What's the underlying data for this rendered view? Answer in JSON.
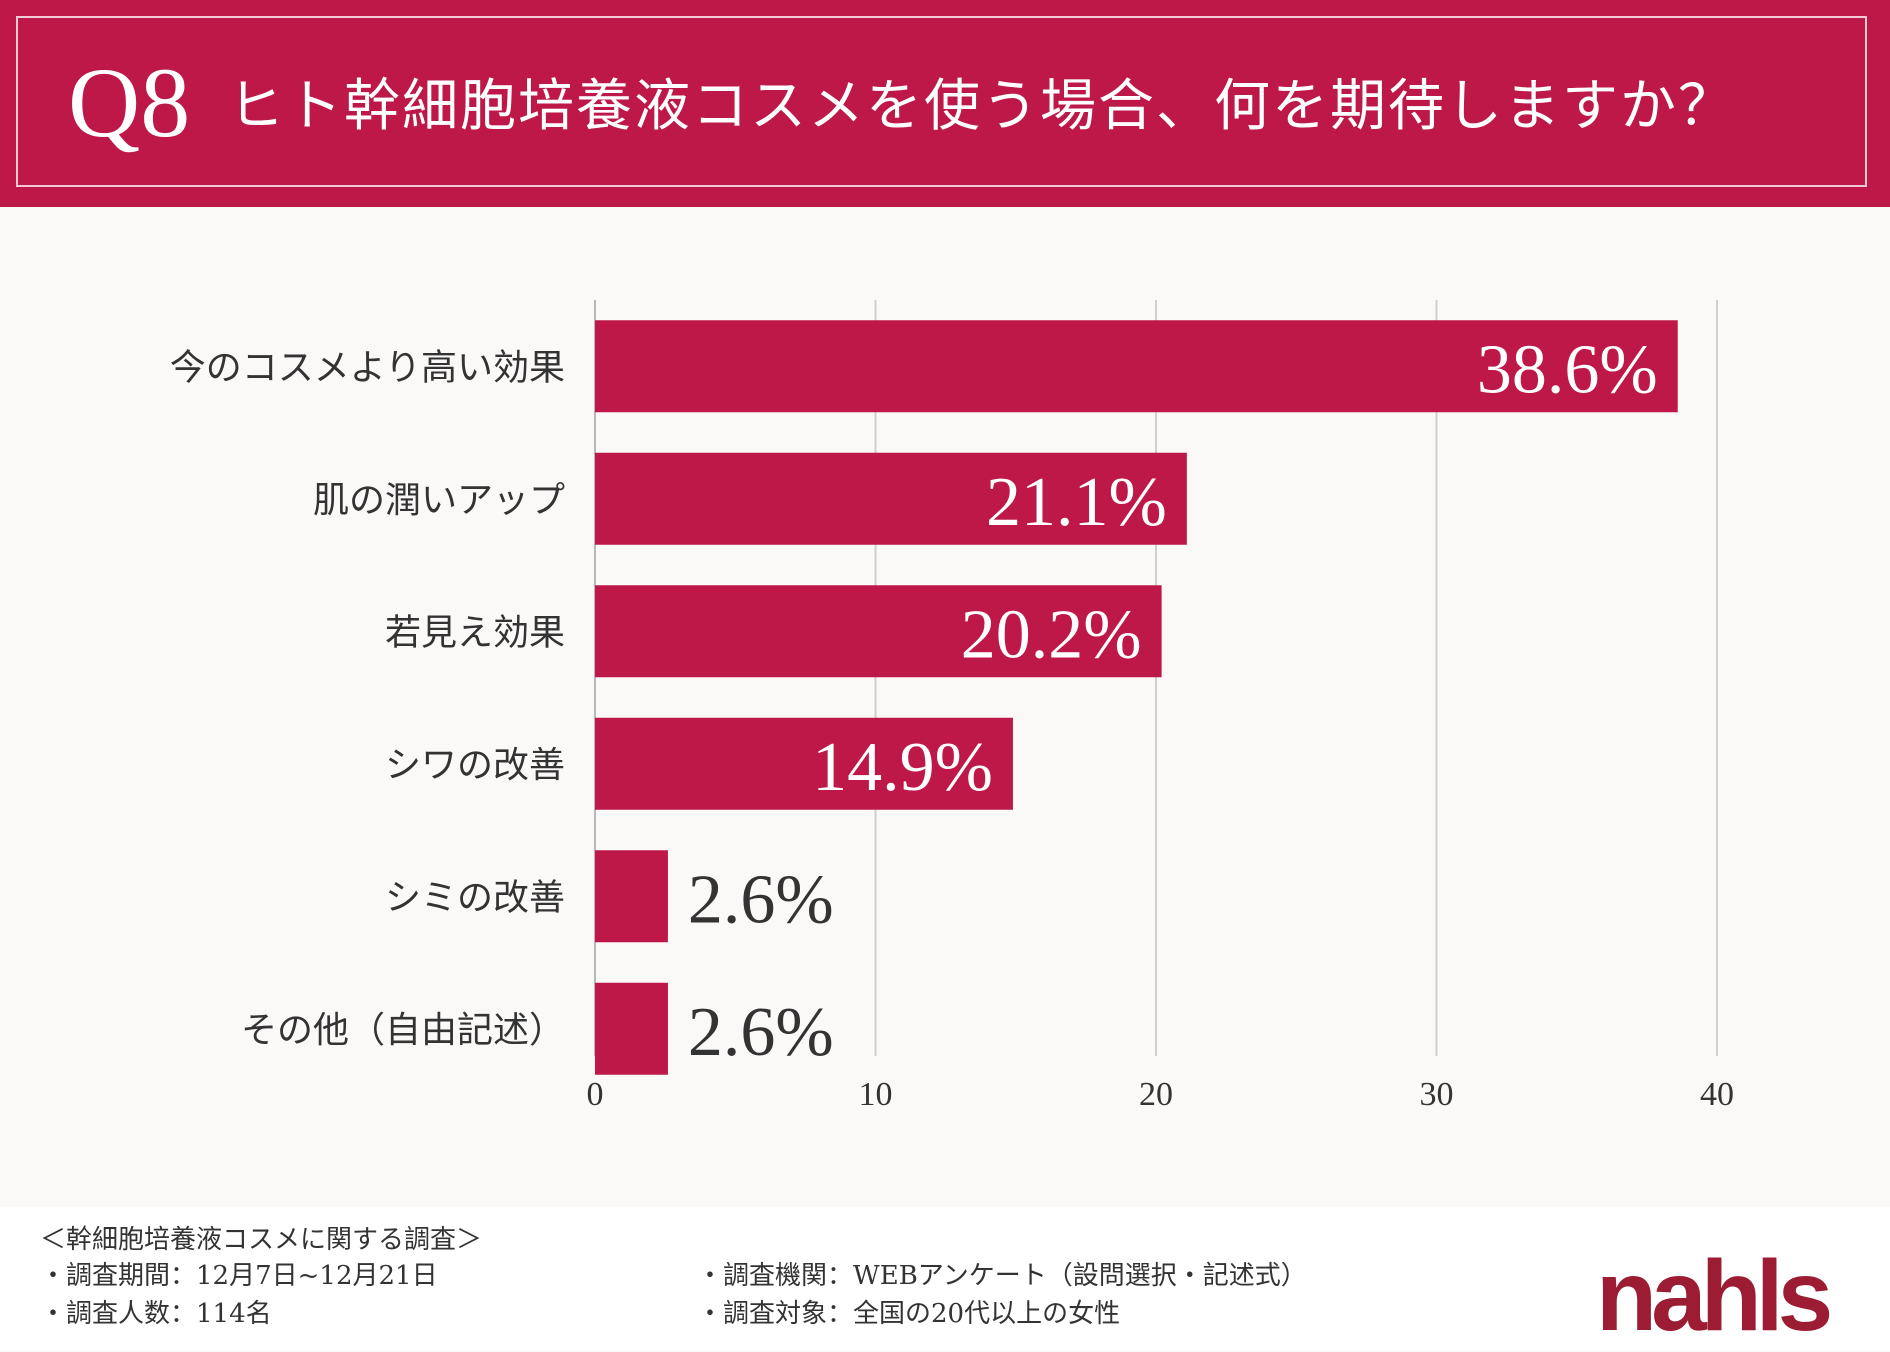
{
  "header": {
    "q_number": "Q8",
    "question": "ヒト幹細胞培養液コスメを使う場合、何を期待しますか？"
  },
  "colors": {
    "accent": "#bd1848",
    "bar": "#bd1848",
    "gridline": "#cfcfcf",
    "value_inside": "#ffffff",
    "value_outside": "#333333",
    "logo": "#9b1c33"
  },
  "chart_data": {
    "type": "bar",
    "orientation": "horizontal",
    "categories": [
      "今のコスメより高い効果",
      "肌の潤いアップ",
      "若見え効果",
      "シワの改善",
      "シミの改善",
      "その他（自由記述）"
    ],
    "values": [
      38.6,
      21.1,
      20.2,
      14.9,
      2.6,
      2.6
    ],
    "value_labels": [
      "38.6%",
      "21.1%",
      "20.2%",
      "14.9%",
      "2.6%",
      "2.6%"
    ],
    "xlim": [
      0,
      40
    ],
    "xticks": [
      0,
      10,
      20,
      30,
      40
    ],
    "xtick_labels": [
      "0",
      "10",
      "20",
      "30",
      "40"
    ],
    "grid": true,
    "title": "",
    "xlabel": "",
    "ylabel": ""
  },
  "footer": {
    "survey_title": "＜幹細胞培養液コスメに関する調査＞",
    "period": "・調査期間：12月7日~12月21日",
    "count": "・調査人数：114名",
    "method": "・調査機関：WEBアンケート（設問選択・記述式）",
    "target": "・調査対象：全国の20代以上の女性",
    "logo_text": "nahls"
  }
}
